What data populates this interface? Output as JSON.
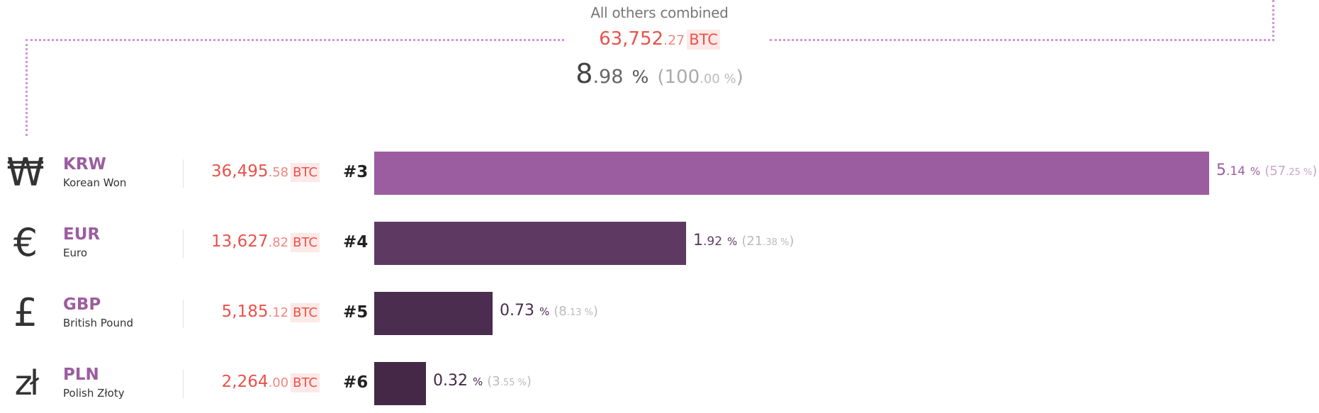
{
  "summary": {
    "label": "All others combined",
    "btc_int": "63,752",
    "btc_dec": ".27",
    "btc_unit": "BTC",
    "pct_int": "8",
    "pct_dec": ".98",
    "pct_sym": "%",
    "share_int": "(100",
    "share_dec": ".00 %",
    "share_close": ")"
  },
  "colors": {
    "accent": "#9b5da0",
    "btc": "#e8524a",
    "bars": [
      "#9b5da0",
      "#5e3a63",
      "#4a2d4f",
      "#452848"
    ]
  },
  "chart_data": {
    "type": "bar",
    "categories": [
      "KRW",
      "EUR",
      "GBP",
      "PLN"
    ],
    "series": [
      {
        "values": [
          5.14,
          1.92,
          0.73,
          0.32
        ]
      }
    ],
    "relative_share_percent": [
      57.25,
      21.38,
      8.13,
      3.55
    ],
    "btc_volume": [
      36495.58,
      13627.82,
      5185.12,
      2264.0
    ],
    "ranks": [
      "#3",
      "#4",
      "#5",
      "#6"
    ],
    "annotations": [
      "All others combined: 63,752.27 BTC, 8.98 % (100.00 %)"
    ]
  },
  "rows": [
    {
      "symbol_icon": "won-sign-icon",
      "symbol": "₩",
      "code": "KRW",
      "name": "Korean Won",
      "btc_int": "36,495",
      "btc_dec": ".58",
      "btc_unit": "BTC",
      "rank": "#3",
      "pct_int": "5",
      "pct_dec": ".14",
      "pct_sym": "%",
      "share_int": "(57",
      "share_dec": ".25 %",
      "share_close": ")",
      "value": 5.14
    },
    {
      "symbol_icon": "euro-sign-icon",
      "symbol": "€",
      "code": "EUR",
      "name": "Euro",
      "btc_int": "13,627",
      "btc_dec": ".82",
      "btc_unit": "BTC",
      "rank": "#4",
      "pct_int": "1",
      "pct_dec": ".92",
      "pct_sym": "%",
      "share_int": "(21",
      "share_dec": ".38 %",
      "share_close": ")",
      "value": 1.92
    },
    {
      "symbol_icon": "pound-sign-icon",
      "symbol": "£",
      "code": "GBP",
      "name": "British Pound",
      "btc_int": "5,185",
      "btc_dec": ".12",
      "btc_unit": "BTC",
      "rank": "#5",
      "pct_int": "0.73",
      "pct_dec": "",
      "pct_sym": "%",
      "share_int": "(8",
      "share_dec": ".13 %",
      "share_close": ")",
      "value": 0.73
    },
    {
      "symbol_icon": "zloty-sign-icon",
      "symbol": "zł",
      "code": "PLN",
      "name": "Polish Złoty",
      "btc_int": "2,264",
      "btc_dec": ".00",
      "btc_unit": "BTC",
      "rank": "#6",
      "pct_int": "0.32",
      "pct_dec": "",
      "pct_sym": "%",
      "share_int": "(3",
      "share_dec": ".55 %",
      "share_close": ")",
      "value": 0.32
    }
  ]
}
